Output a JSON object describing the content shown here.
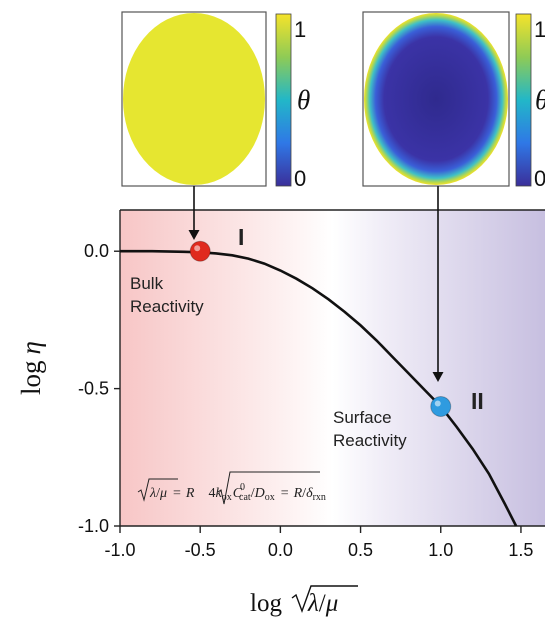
{
  "chart_data": {
    "type": "line",
    "xlabel": "log √λ/μ",
    "ylabel": "log η",
    "xlim": [
      -1.0,
      1.65
    ],
    "ylim": [
      -1.0,
      0.15
    ],
    "x_ticks": [
      -1.0,
      -0.5,
      0.0,
      0.5,
      1.0,
      1.5
    ],
    "x_tick_labels": [
      "-1.0",
      "-0.5",
      "0.0",
      "0.5",
      "1.0",
      "1.5"
    ],
    "y_ticks": [
      0.0,
      -0.5,
      -1.0
    ],
    "y_tick_labels": [
      "0.0",
      "-0.5",
      "-1.0"
    ],
    "grid": false,
    "series": [
      {
        "x": [
          -1.0,
          -0.8,
          -0.6,
          -0.5,
          -0.4,
          -0.3,
          -0.2,
          -0.1,
          0.0,
          0.1,
          0.2,
          0.3,
          0.4,
          0.5,
          0.6,
          0.7,
          0.8,
          0.9,
          1.0,
          1.1,
          1.2,
          1.3,
          1.4,
          1.47
        ],
        "y": [
          0.0,
          0.0,
          -0.002,
          -0.004,
          -0.008,
          -0.015,
          -0.027,
          -0.045,
          -0.07,
          -0.1,
          -0.135,
          -0.175,
          -0.22,
          -0.27,
          -0.325,
          -0.385,
          -0.445,
          -0.505,
          -0.565,
          -0.64,
          -0.72,
          -0.81,
          -0.92,
          -1.0
        ],
        "color": "#111111"
      }
    ],
    "points": [
      {
        "x": -0.5,
        "y": 0.0,
        "color": "#e02a1e"
      },
      {
        "x": 1.0,
        "y": -0.565,
        "color": "#2f9be0"
      }
    ],
    "background": {
      "left_color": "#f7c6c6",
      "right_color": "#c7bfe0"
    },
    "annotations": {
      "region_1": "I",
      "region_2": "II",
      "bulk": [
        "Bulk",
        "Reactivity"
      ],
      "surface": [
        "Surface",
        "Reactivity"
      ],
      "equation": "√λ/μ = R√4k_ox C⁰_cat / D_ox = R/δ_rxn"
    }
  },
  "insets": [
    {
      "map": "uniform",
      "colorbar_max": "1",
      "colorbar_min": "0",
      "colorbar_label": "θ",
      "fill_color": "#e6e630"
    },
    {
      "map": "surface-ring",
      "colorbar_max": "1",
      "colorbar_min": "0",
      "colorbar_label": "θ",
      "core_color": "#3a2f98",
      "ring_color": "#3fc0c6"
    }
  ]
}
